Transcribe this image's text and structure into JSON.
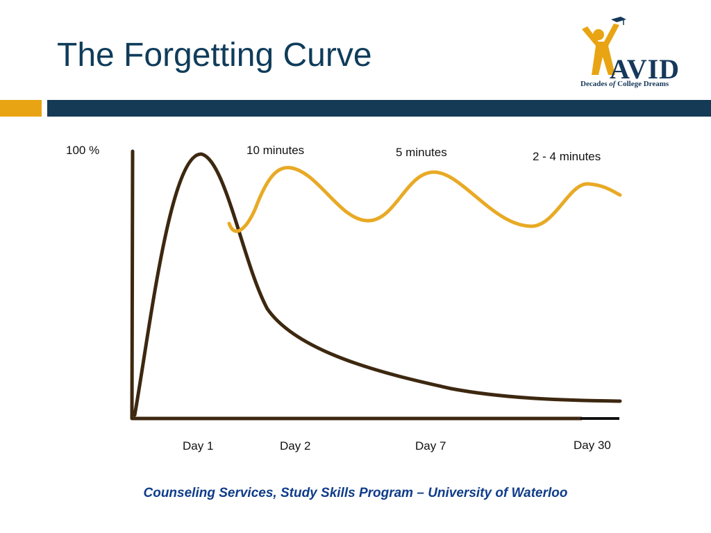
{
  "slide": {
    "title": "The Forgetting Curve",
    "footer": "Counseling Services, Study Skills Program – University of Waterloo"
  },
  "logo": {
    "name": "AVID",
    "tagline_pre": "Decades ",
    "tagline_of": "of",
    "tagline_post": " College Dreams",
    "icon": "graduate-figure-icon"
  },
  "colors": {
    "title": "#0f3c5a",
    "band_gold": "#e8a413",
    "band_navy": "#143a55",
    "forgetting_curve": "#3d2810",
    "review_curve": "#e8aa25",
    "footer": "#0f3c8a"
  },
  "chart_data": {
    "type": "line",
    "title": "",
    "ylabel": "100 %",
    "xlabel": "",
    "x_ticks": [
      "Day 1",
      "Day 2",
      "Day 7",
      "Day 30"
    ],
    "annotations": [
      "10 minutes",
      "5 minutes",
      "2 - 4 minutes"
    ],
    "grid": false,
    "legend": "none"
  }
}
